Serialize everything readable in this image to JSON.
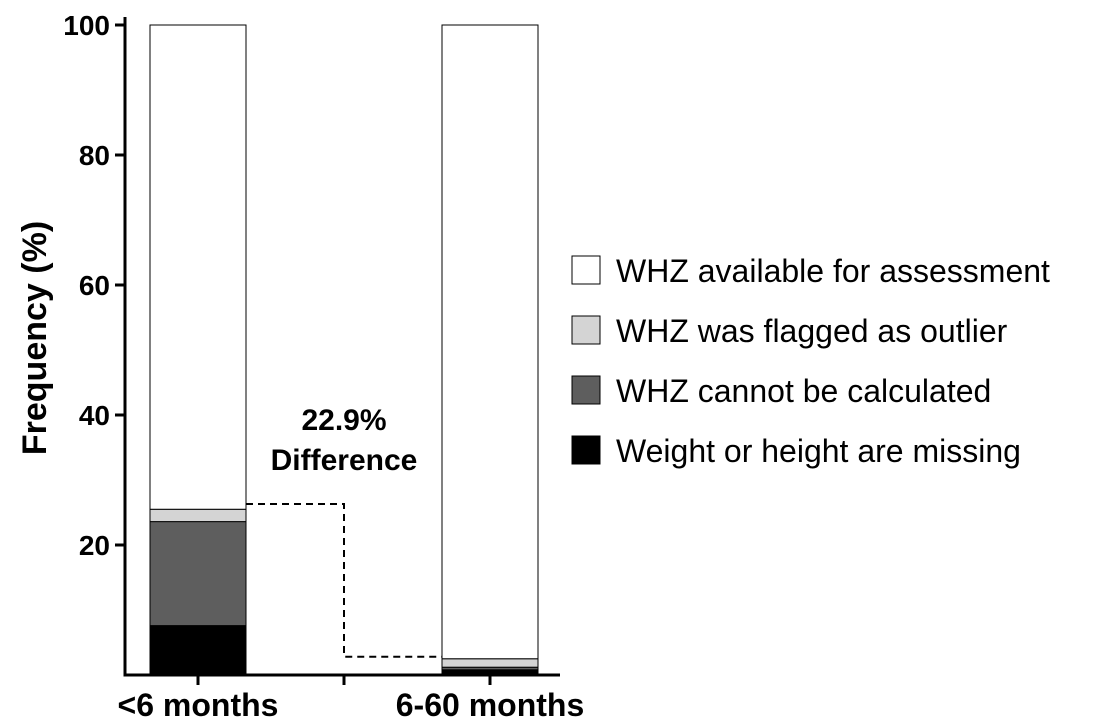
{
  "chart_data": {
    "type": "bar",
    "stacked": true,
    "categories": [
      "<6 months",
      "6-60 months"
    ],
    "ylabel": "Frequency (%)",
    "ylim": [
      0,
      100
    ],
    "yticks": [
      20,
      40,
      60,
      80,
      100
    ],
    "series": [
      {
        "name": "Weight or height are missing",
        "values": [
          7.6,
          0.8
        ],
        "color": "#000000"
      },
      {
        "name": "WHZ cannot be calculated",
        "values": [
          16.0,
          0.4
        ],
        "color": "#5e5e5e"
      },
      {
        "name": "WHZ was flagged as outlier",
        "values": [
          1.9,
          1.3
        ],
        "color": "#d4d4d4"
      },
      {
        "name": "WHZ available for assessment",
        "values": [
          74.5,
          97.5
        ],
        "color": "#ffffff"
      }
    ],
    "annotation": {
      "lines": [
        "22.9%",
        "Difference"
      ],
      "from_value": 26.3,
      "to_value": 2.8
    },
    "legend": {
      "placement": "right",
      "order": [
        "WHZ available for assessment",
        "WHZ was flagged as outlier",
        "WHZ cannot be calculated",
        "Weight or height are missing"
      ]
    },
    "grid": false
  }
}
